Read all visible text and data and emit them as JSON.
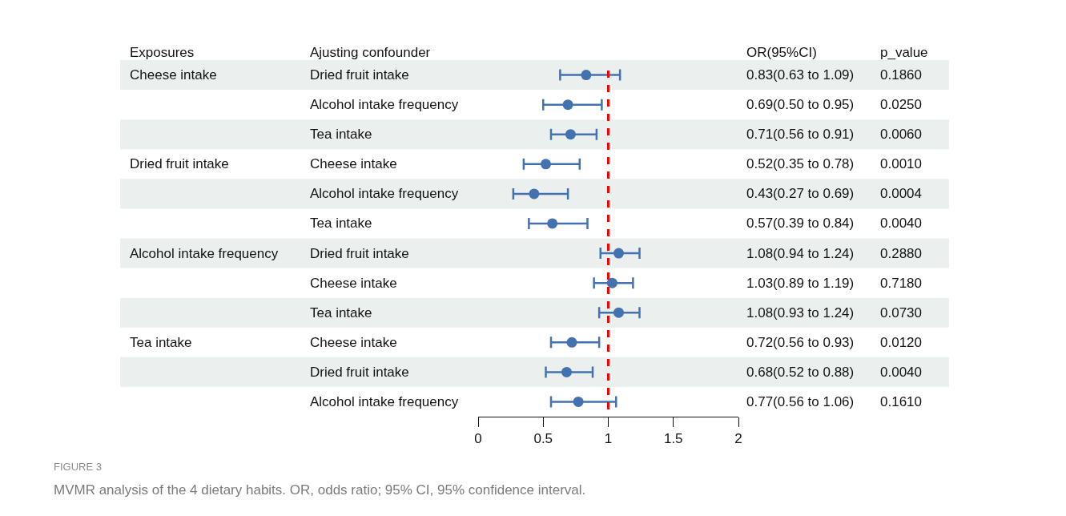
{
  "chart_data": {
    "type": "scatter",
    "orientation": "horizontal",
    "title": "FIGURE 3",
    "subtitle": "MVMR analysis of the 4 dietary habits. OR, odds ratio; 95% CI, 95% confidence interval.",
    "ylabel": "Ajusting confounder",
    "categories": [
      "Dried fruit intake",
      "Alcohol intake frequency",
      "Tea intake",
      "Cheese intake",
      "Alcohol intake frequency",
      "Tea intake",
      "Dried fruit intake",
      "Cheese intake",
      "Tea intake",
      "Cheese intake",
      "Dried fruit intake",
      "Alcohol intake frequency"
    ],
    "series": [
      {
        "color": "#4472b0",
        "values": [
          0.83,
          0.69,
          0.71,
          0.52,
          0.43,
          0.57,
          1.08,
          1.03,
          1.08,
          0.72,
          0.68,
          0.77
        ],
        "errors": [
          [
            0.63,
            1.09
          ],
          [
            0.5,
            0.95
          ],
          [
            0.56,
            0.91
          ],
          [
            0.35,
            0.78
          ],
          [
            0.27,
            0.69
          ],
          [
            0.39,
            0.84
          ],
          [
            0.94,
            1.24
          ],
          [
            0.89,
            1.19
          ],
          [
            0.93,
            1.24
          ],
          [
            0.56,
            0.93
          ],
          [
            0.52,
            0.88
          ],
          [
            0.56,
            1.06
          ]
        ],
        "value_labels": [
          "0.83(0.63 to 1.09)",
          "0.69(0.50 to 0.95)",
          "0.71(0.56 to 0.91)",
          "0.52(0.35 to 0.78)",
          "0.43(0.27 to 0.69)",
          "0.57(0.39 to 0.84)",
          "1.08(0.94 to 1.24)",
          "1.03(0.89 to 1.19)",
          "1.08(0.93 to 1.24)",
          "0.72(0.56 to 0.93)",
          "0.68(0.52 to 0.88)",
          "0.77(0.56 to 1.06)"
        ]
      }
    ],
    "annotations": [
      "Exposures",
      "OR(95%CI)",
      "p_value",
      "Cheese intake",
      "Dried fruit intake",
      "Alcohol intake frequency",
      "Tea intake",
      "0.1860",
      "0.0250",
      "0.0060",
      "0.0010",
      "0.0004",
      "0.0040",
      "0.2880",
      "0.7180",
      "0.0730",
      "0.0120",
      "0.0040",
      "0.1610"
    ],
    "ref_lines": [
      {
        "axis": "x",
        "value": 1,
        "color": "#ff0000",
        "line_style": "dashed"
      }
    ],
    "xlim": [
      0,
      2
    ],
    "xticks": [
      0,
      0.5,
      1,
      1.5,
      2
    ],
    "tick_labels": "x",
    "grid": false,
    "marker": "circle"
  }
}
